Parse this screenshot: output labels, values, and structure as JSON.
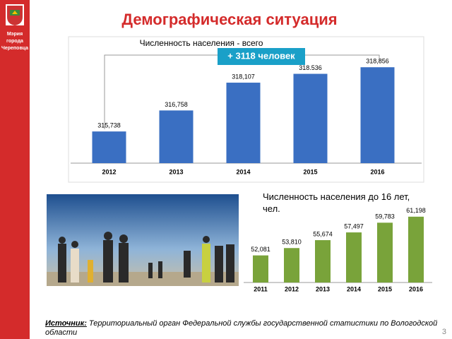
{
  "slide": {
    "title": "Демографическая ситуация",
    "logo_text": [
      "Мэрия",
      "города",
      "Череповца"
    ],
    "source_label": "Источник:",
    "source_text": " Территориальный орган Федеральной службы государственной статистики по Вологодской области",
    "page_number": "3"
  },
  "chart_data": [
    {
      "type": "bar",
      "title": "Численность населения - всего",
      "annotation": "+  3118 человек",
      "categories": [
        "2012",
        "2013",
        "2014",
        "2015",
        "2016"
      ],
      "values": [
        315738,
        316758,
        318107,
        318536,
        318856
      ],
      "value_labels": [
        "315,738",
        "316,758",
        "318,107",
        "318.536",
        "318,856"
      ],
      "color": "#3a6fc2",
      "ylim": [
        314200,
        319000
      ]
    },
    {
      "type": "bar",
      "title": "Численность населения до 16 лет, чел.",
      "categories": [
        "2011",
        "2012",
        "2013",
        "2014",
        "2015",
        "2016"
      ],
      "values": [
        52081,
        53810,
        55674,
        57497,
        59783,
        61198
      ],
      "value_labels": [
        "52,081",
        "53,810",
        "55,674",
        "57,497",
        "59,783",
        "61,198"
      ],
      "color": "#79a33a",
      "ylim": [
        45700,
        62000
      ]
    }
  ]
}
